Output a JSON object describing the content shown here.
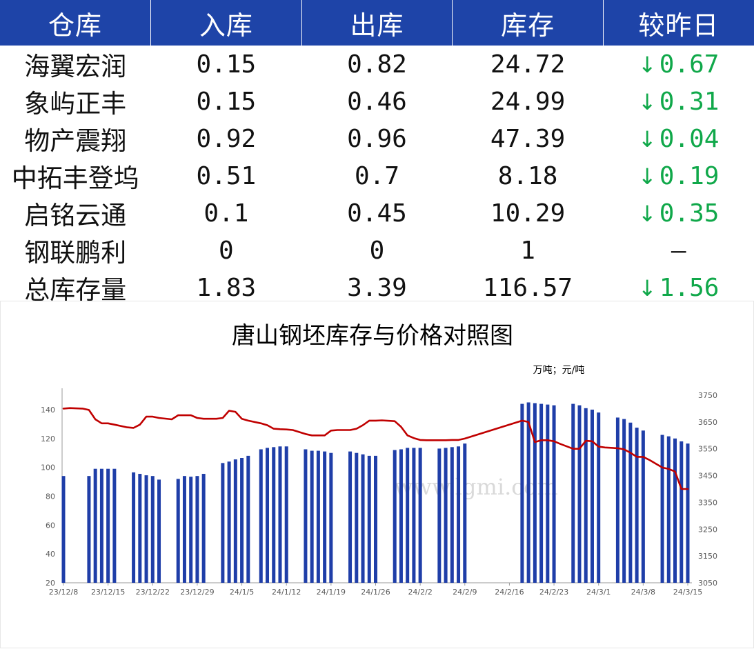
{
  "table": {
    "headers": [
      "仓库",
      "入库",
      "出库",
      "库存",
      "较昨日"
    ],
    "rows": [
      {
        "name": "海翼宏润",
        "in": "0.15",
        "out": "0.82",
        "stock": "24.72",
        "change": "0.67",
        "dir": "down"
      },
      {
        "name": "象屿正丰",
        "in": "0.15",
        "out": "0.46",
        "stock": "24.99",
        "change": "0.31",
        "dir": "down"
      },
      {
        "name": "物产震翔",
        "in": "0.92",
        "out": "0.96",
        "stock": "47.39",
        "change": "0.04",
        "dir": "down"
      },
      {
        "name": "中拓丰登坞",
        "in": "0.51",
        "out": "0.7",
        "stock": "8.18",
        "change": "0.19",
        "dir": "down"
      },
      {
        "name": "启铭云通",
        "in": "0.1",
        "out": "0.45",
        "stock": "10.29",
        "change": "0.35",
        "dir": "down"
      },
      {
        "name": "钢联鹏利",
        "in": "0",
        "out": "0",
        "stock": "1",
        "change": "–",
        "dir": "flat"
      },
      {
        "name": "总库存量",
        "in": "1.83",
        "out": "3.39",
        "stock": "116.57",
        "change": "1.56",
        "dir": "down"
      }
    ],
    "colors": {
      "header_bg": "#1e44a8",
      "down": "#10a84a"
    },
    "down_icon": "↓"
  },
  "chart_data": {
    "type": "bar",
    "title": "唐山钢坯库存与价格对照图",
    "unit_label": "万吨；元/吨",
    "watermark": "www.lgmi.com",
    "x_ticks": [
      "23/12/8",
      "23/12/15",
      "23/12/22",
      "23/12/29",
      "24/1/5",
      "24/1/12",
      "24/1/19",
      "24/1/26",
      "24/2/2",
      "24/2/9",
      "24/2/16",
      "24/2/23",
      "24/3/1",
      "24/3/8",
      "24/3/15"
    ],
    "x_range": [
      "2023-12-08",
      "2024-03-15"
    ],
    "y_left": {
      "ticks": [
        20,
        40,
        60,
        80,
        100,
        120,
        140
      ],
      "range": [
        20,
        150
      ]
    },
    "y_right": {
      "ticks": [
        3050,
        3150,
        3250,
        3350,
        3450,
        3550,
        3650,
        3750
      ],
      "range": [
        3050,
        3750
      ]
    },
    "series": [
      {
        "kind": "bar",
        "axis": "left",
        "color": "#1f3ea8",
        "points": [
          [
            "2023-12-08",
            94
          ],
          [
            "2023-12-12",
            94
          ],
          [
            "2023-12-13",
            99
          ],
          [
            "2023-12-14",
            99
          ],
          [
            "2023-12-15",
            99
          ],
          [
            "2023-12-16",
            99
          ],
          [
            "2023-12-19",
            96.5
          ],
          [
            "2023-12-20",
            95.5
          ],
          [
            "2023-12-21",
            94.5
          ],
          [
            "2023-12-22",
            94
          ],
          [
            "2023-12-23",
            91.5
          ],
          [
            "2023-12-26",
            92
          ],
          [
            "2023-12-27",
            94
          ],
          [
            "2023-12-28",
            93.5
          ],
          [
            "2023-12-29",
            94
          ],
          [
            "2023-12-30",
            95.5
          ],
          [
            "2024-01-02",
            103
          ],
          [
            "2024-01-03",
            104
          ],
          [
            "2024-01-04",
            105.5
          ],
          [
            "2024-01-05",
            106.5
          ],
          [
            "2024-01-06",
            108
          ],
          [
            "2024-01-08",
            112.5
          ],
          [
            "2024-01-09",
            113.5
          ],
          [
            "2024-01-10",
            114
          ],
          [
            "2024-01-11",
            114.5
          ],
          [
            "2024-01-12",
            114.5
          ],
          [
            "2024-01-15",
            112.5
          ],
          [
            "2024-01-16",
            111.5
          ],
          [
            "2024-01-17",
            111.5
          ],
          [
            "2024-01-18",
            111
          ],
          [
            "2024-01-19",
            110
          ],
          [
            "2024-01-22",
            111
          ],
          [
            "2024-01-23",
            110
          ],
          [
            "2024-01-24",
            109
          ],
          [
            "2024-01-25",
            108
          ],
          [
            "2024-01-26",
            108
          ],
          [
            "2024-01-29",
            112
          ],
          [
            "2024-01-30",
            112.5
          ],
          [
            "2024-01-31",
            113.5
          ],
          [
            "2024-02-01",
            113.5
          ],
          [
            "2024-02-02",
            113.5
          ],
          [
            "2024-02-05",
            113
          ],
          [
            "2024-02-06",
            113.5
          ],
          [
            "2024-02-07",
            114
          ],
          [
            "2024-02-08",
            114.5
          ],
          [
            "2024-02-09",
            116.5
          ],
          [
            "2024-02-18",
            144
          ],
          [
            "2024-02-19",
            145
          ],
          [
            "2024-02-20",
            144.5
          ],
          [
            "2024-02-21",
            144
          ],
          [
            "2024-02-22",
            143.5
          ],
          [
            "2024-02-23",
            143
          ],
          [
            "2024-02-26",
            144
          ],
          [
            "2024-02-27",
            143
          ],
          [
            "2024-02-28",
            141
          ],
          [
            "2024-02-29",
            140
          ],
          [
            "2024-03-01",
            138
          ],
          [
            "2024-03-04",
            134.5
          ],
          [
            "2024-03-05",
            133.5
          ],
          [
            "2024-03-06",
            131
          ],
          [
            "2024-03-07",
            127.5
          ],
          [
            "2024-03-08",
            125.5
          ],
          [
            "2024-03-11",
            122.5
          ],
          [
            "2024-03-12",
            121.5
          ],
          [
            "2024-03-13",
            120
          ],
          [
            "2024-03-14",
            118
          ],
          [
            "2024-03-15",
            116.5
          ]
        ]
      },
      {
        "kind": "line",
        "axis": "right",
        "color": "#c00000",
        "points": [
          [
            "2023-12-08",
            3700
          ],
          [
            "2023-12-09",
            3702
          ],
          [
            "2023-12-11",
            3700
          ],
          [
            "2023-12-12",
            3695
          ],
          [
            "2023-12-13",
            3660
          ],
          [
            "2023-12-14",
            3645
          ],
          [
            "2023-12-15",
            3645
          ],
          [
            "2023-12-16",
            3640
          ],
          [
            "2023-12-18",
            3630
          ],
          [
            "2023-12-19",
            3628
          ],
          [
            "2023-12-20",
            3640
          ],
          [
            "2023-12-21",
            3670
          ],
          [
            "2023-12-22",
            3670
          ],
          [
            "2023-12-23",
            3665
          ],
          [
            "2023-12-25",
            3660
          ],
          [
            "2023-12-26",
            3675
          ],
          [
            "2023-12-27",
            3675
          ],
          [
            "2023-12-28",
            3675
          ],
          [
            "2023-12-29",
            3665
          ],
          [
            "2023-12-30",
            3662
          ],
          [
            "2024-01-01",
            3662
          ],
          [
            "2024-01-02",
            3665
          ],
          [
            "2024-01-03",
            3692
          ],
          [
            "2024-01-04",
            3688
          ],
          [
            "2024-01-05",
            3662
          ],
          [
            "2024-01-06",
            3655
          ],
          [
            "2024-01-08",
            3645
          ],
          [
            "2024-01-09",
            3638
          ],
          [
            "2024-01-10",
            3625
          ],
          [
            "2024-01-11",
            3623
          ],
          [
            "2024-01-12",
            3622
          ],
          [
            "2024-01-13",
            3620
          ],
          [
            "2024-01-15",
            3605
          ],
          [
            "2024-01-16",
            3600
          ],
          [
            "2024-01-17",
            3600
          ],
          [
            "2024-01-18",
            3600
          ],
          [
            "2024-01-19",
            3618
          ],
          [
            "2024-01-20",
            3620
          ],
          [
            "2024-01-22",
            3620
          ],
          [
            "2024-01-23",
            3625
          ],
          [
            "2024-01-24",
            3638
          ],
          [
            "2024-01-25",
            3655
          ],
          [
            "2024-01-26",
            3655
          ],
          [
            "2024-01-27",
            3656
          ],
          [
            "2024-01-29",
            3653
          ],
          [
            "2024-01-30",
            3632
          ],
          [
            "2024-01-31",
            3600
          ],
          [
            "2024-02-01",
            3590
          ],
          [
            "2024-02-02",
            3583
          ],
          [
            "2024-02-03",
            3582
          ],
          [
            "2024-02-05",
            3582
          ],
          [
            "2024-02-06",
            3582
          ],
          [
            "2024-02-07",
            3583
          ],
          [
            "2024-02-08",
            3583
          ],
          [
            "2024-02-09",
            3588
          ],
          [
            "2024-02-18",
            3655
          ],
          [
            "2024-02-19",
            3650
          ],
          [
            "2024-02-20",
            3575
          ],
          [
            "2024-02-21",
            3582
          ],
          [
            "2024-02-22",
            3582
          ],
          [
            "2024-02-23",
            3578
          ],
          [
            "2024-02-24",
            3568
          ],
          [
            "2024-02-26",
            3550
          ],
          [
            "2024-02-27",
            3550
          ],
          [
            "2024-02-28",
            3580
          ],
          [
            "2024-02-29",
            3578
          ],
          [
            "2024-03-01",
            3558
          ],
          [
            "2024-03-02",
            3555
          ],
          [
            "2024-03-04",
            3552
          ],
          [
            "2024-03-05",
            3548
          ],
          [
            "2024-03-06",
            3535
          ],
          [
            "2024-03-07",
            3520
          ],
          [
            "2024-03-08",
            3520
          ],
          [
            "2024-03-09",
            3508
          ],
          [
            "2024-03-11",
            3480
          ],
          [
            "2024-03-12",
            3475
          ],
          [
            "2024-03-13",
            3465
          ],
          [
            "2024-03-14",
            3400
          ],
          [
            "2024-03-15",
            3400
          ]
        ]
      }
    ]
  }
}
